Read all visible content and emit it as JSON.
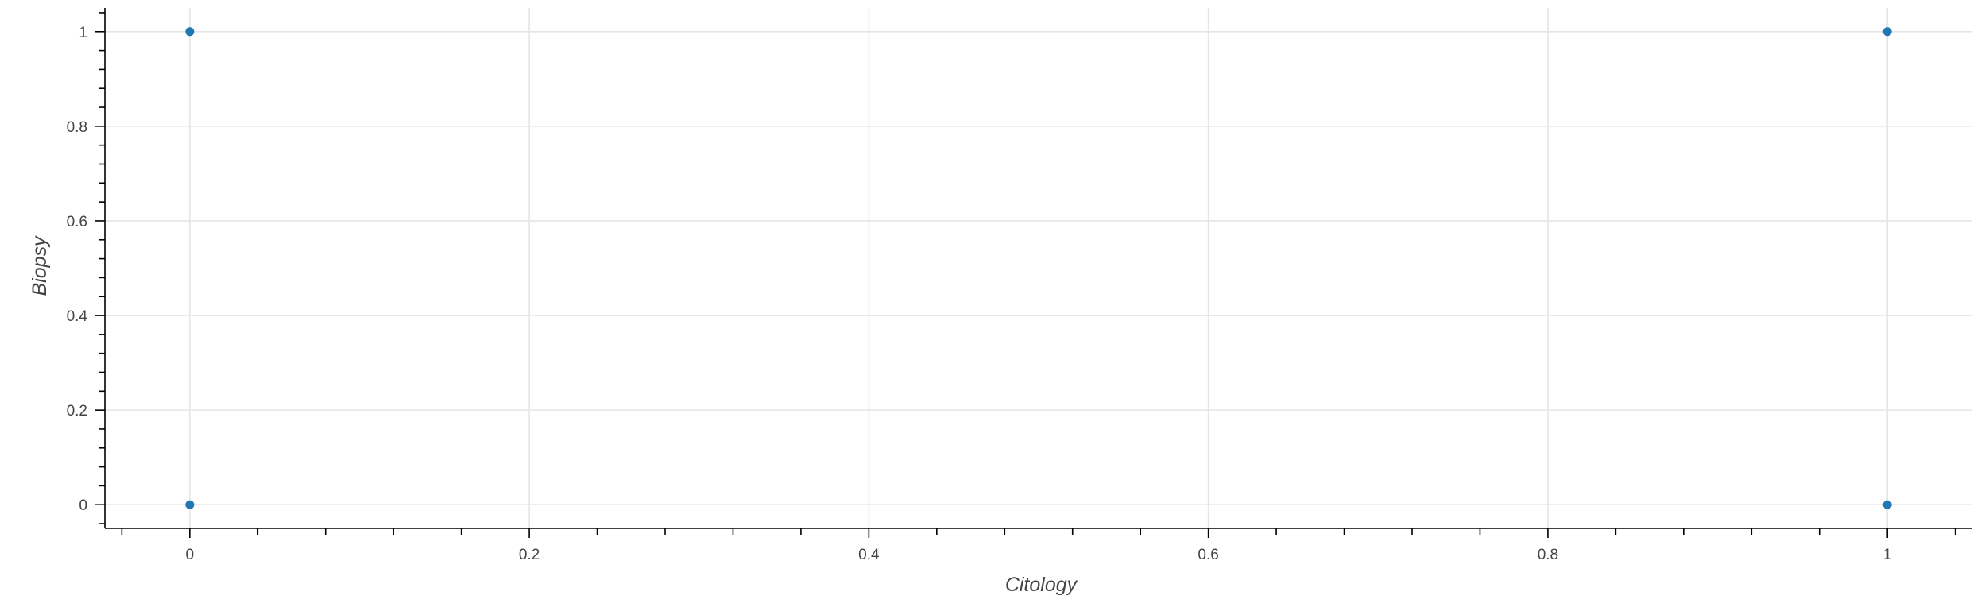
{
  "chart_data": {
    "type": "scatter",
    "title": "",
    "xlabel": "Citology",
    "ylabel": "Biopsy",
    "xlim": [
      -0.05,
      1.05
    ],
    "ylim": [
      -0.05,
      1.05
    ],
    "x_ticks": [
      0,
      0.2,
      0.4,
      0.6,
      0.8,
      1
    ],
    "x_tick_labels": [
      "0",
      "0.2",
      "0.4",
      "0.6",
      "0.8",
      "1"
    ],
    "y_ticks": [
      0,
      0.2,
      0.4,
      0.6,
      0.8,
      1
    ],
    "y_tick_labels": [
      "0",
      "0.2",
      "0.4",
      "0.6",
      "0.8",
      "1"
    ],
    "grid": true,
    "series": [
      {
        "points": [
          {
            "x": 0,
            "y": 1
          },
          {
            "x": 0,
            "y": 0
          },
          {
            "x": 1,
            "y": 1
          },
          {
            "x": 1,
            "y": 0
          }
        ],
        "color": "#1f77b4"
      }
    ]
  }
}
